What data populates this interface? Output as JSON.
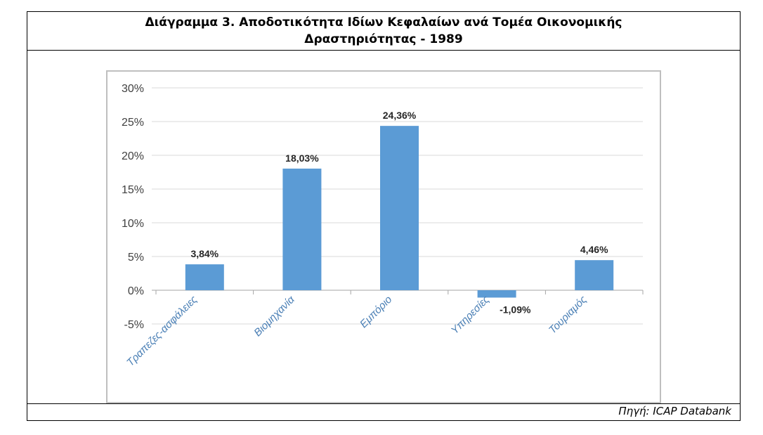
{
  "title_line1": "Διάγραμμα 3. Αποδοτικότητα Ιδίων Κεφαλαίων ανά Τομέα Οικονομικής",
  "title_line2": "Δραστηριότητας - 1989",
  "source": "Πηγή: ICAP Databank",
  "colors": {
    "bar": "#5b9bd5",
    "grid": "#d9d9d9",
    "label": "#4a7fb5"
  },
  "chart_data": {
    "type": "bar",
    "title": "Διάγραμμα 3. Αποδοτικότητα Ιδίων Κεφαλαίων ανά Τομέα Οικονομικής Δραστηριότητας - 1989",
    "categories": [
      "Τραπεζες-ασφάλειες",
      "Βιομηχανία",
      "Εμπόριο",
      "Υπηρεσίες",
      "Τουριαμός"
    ],
    "values": [
      3.84,
      18.03,
      24.36,
      -1.09,
      4.46
    ],
    "data_labels": [
      "3,84%",
      "18,03%",
      "24,36%",
      "-1,09%",
      "4,46%"
    ],
    "yticks": [
      30,
      25,
      20,
      15,
      10,
      5,
      0,
      -5
    ],
    "ytick_labels": [
      "30%",
      "25%",
      "20%",
      "15%",
      "10%",
      "5%",
      "0%",
      "-5%"
    ],
    "ylim": [
      -5,
      30
    ],
    "xlabel": "",
    "ylabel": "",
    "grid": true,
    "legend": "none"
  }
}
